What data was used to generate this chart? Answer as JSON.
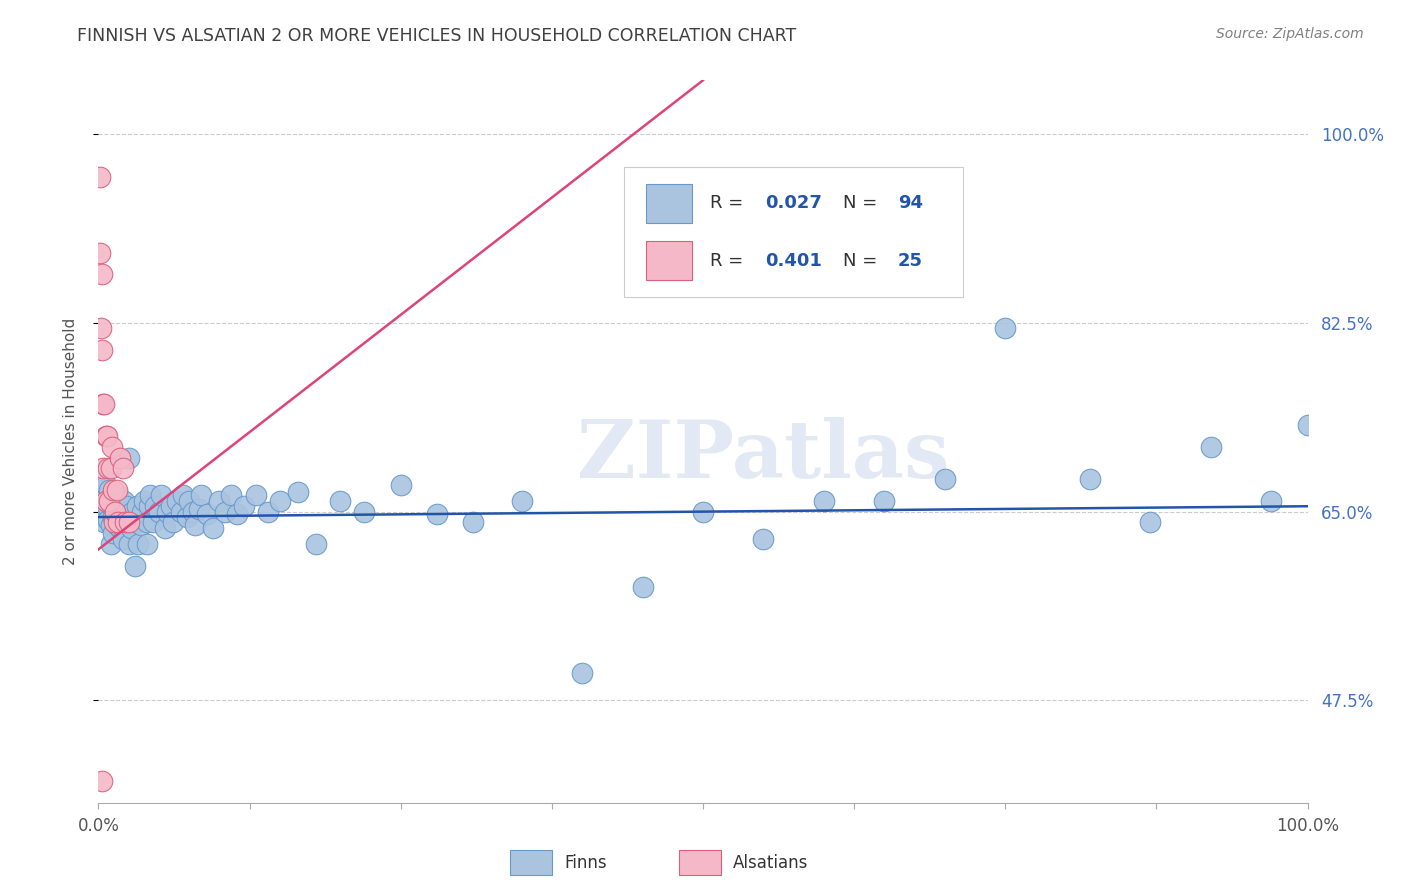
{
  "title": "FINNISH VS ALSATIAN 2 OR MORE VEHICLES IN HOUSEHOLD CORRELATION CHART",
  "source": "Source: ZipAtlas.com",
  "ylabel": "2 or more Vehicles in Household",
  "watermark": "ZIPatlas",
  "finn_R": 0.027,
  "finn_N": 94,
  "alsatian_R": 0.401,
  "alsatian_N": 25,
  "xlim": [
    0.0,
    1.0
  ],
  "ylim": [
    0.38,
    1.05
  ],
  "yticks": [
    0.475,
    0.65,
    0.825,
    1.0
  ],
  "ytick_labels": [
    "47.5%",
    "65.0%",
    "82.5%",
    "100.0%"
  ],
  "xtick_positions": [
    0.0,
    0.125,
    0.25,
    0.375,
    0.5,
    0.625,
    0.75,
    0.875,
    1.0
  ],
  "title_color": "#404040",
  "source_color": "#808080",
  "right_tick_color": "#4472c4",
  "grid_color": "#cccccc",
  "finn_dot_color": "#aac4e0",
  "finn_edge_color": "#6699cc",
  "alsatian_dot_color": "#f5b8c8",
  "alsatian_edge_color": "#d9607a",
  "finn_line_color": "#2255aa",
  "alsatian_line_color": "#dd4477",
  "finn_x": [
    0.003,
    0.003,
    0.003,
    0.004,
    0.005,
    0.005,
    0.006,
    0.006,
    0.007,
    0.008,
    0.009,
    0.009,
    0.01,
    0.01,
    0.01,
    0.011,
    0.012,
    0.012,
    0.013,
    0.014,
    0.015,
    0.015,
    0.016,
    0.017,
    0.018,
    0.019,
    0.02,
    0.02,
    0.021,
    0.022,
    0.023,
    0.025,
    0.025,
    0.027,
    0.028,
    0.03,
    0.03,
    0.032,
    0.033,
    0.035,
    0.036,
    0.038,
    0.04,
    0.04,
    0.042,
    0.043,
    0.045,
    0.047,
    0.05,
    0.052,
    0.055,
    0.057,
    0.06,
    0.062,
    0.065,
    0.068,
    0.07,
    0.073,
    0.075,
    0.078,
    0.08,
    0.083,
    0.085,
    0.09,
    0.095,
    0.1,
    0.105,
    0.11,
    0.115,
    0.12,
    0.13,
    0.14,
    0.15,
    0.165,
    0.18,
    0.2,
    0.22,
    0.25,
    0.28,
    0.31,
    0.35,
    0.4,
    0.45,
    0.5,
    0.55,
    0.6,
    0.65,
    0.7,
    0.75,
    0.82,
    0.87,
    0.92,
    0.97,
    1.0
  ],
  "finn_y": [
    0.65,
    0.66,
    0.67,
    0.645,
    0.64,
    0.658,
    0.668,
    0.675,
    0.655,
    0.642,
    0.66,
    0.67,
    0.62,
    0.638,
    0.655,
    0.665,
    0.63,
    0.645,
    0.66,
    0.65,
    0.638,
    0.652,
    0.665,
    0.645,
    0.635,
    0.655,
    0.625,
    0.645,
    0.66,
    0.64,
    0.655,
    0.7,
    0.62,
    0.635,
    0.65,
    0.6,
    0.64,
    0.655,
    0.62,
    0.638,
    0.65,
    0.66,
    0.62,
    0.64,
    0.655,
    0.665,
    0.64,
    0.655,
    0.65,
    0.665,
    0.635,
    0.65,
    0.655,
    0.64,
    0.66,
    0.65,
    0.665,
    0.645,
    0.66,
    0.65,
    0.638,
    0.652,
    0.665,
    0.648,
    0.635,
    0.66,
    0.65,
    0.665,
    0.648,
    0.655,
    0.665,
    0.65,
    0.66,
    0.668,
    0.62,
    0.66,
    0.65,
    0.675,
    0.648,
    0.64,
    0.66,
    0.5,
    0.58,
    0.65,
    0.625,
    0.66,
    0.66,
    0.68,
    0.82,
    0.68,
    0.64,
    0.71,
    0.66,
    0.73
  ],
  "alsatian_x": [
    0.001,
    0.001,
    0.002,
    0.003,
    0.003,
    0.004,
    0.004,
    0.005,
    0.006,
    0.006,
    0.007,
    0.008,
    0.009,
    0.01,
    0.011,
    0.012,
    0.013,
    0.014,
    0.015,
    0.016,
    0.018,
    0.02,
    0.022,
    0.025,
    0.003
  ],
  "alsatian_y": [
    0.96,
    0.89,
    0.82,
    0.87,
    0.8,
    0.75,
    0.69,
    0.75,
    0.72,
    0.66,
    0.72,
    0.69,
    0.66,
    0.69,
    0.71,
    0.67,
    0.64,
    0.65,
    0.67,
    0.64,
    0.7,
    0.69,
    0.64,
    0.64,
    0.4
  ],
  "als_line_x0": 0.0,
  "als_line_y0": 0.615,
  "als_line_x1": 0.5,
  "als_line_y1": 1.05,
  "finn_line_x0": 0.0,
  "finn_line_y0": 0.645,
  "finn_line_x1": 1.0,
  "finn_line_y1": 0.655
}
